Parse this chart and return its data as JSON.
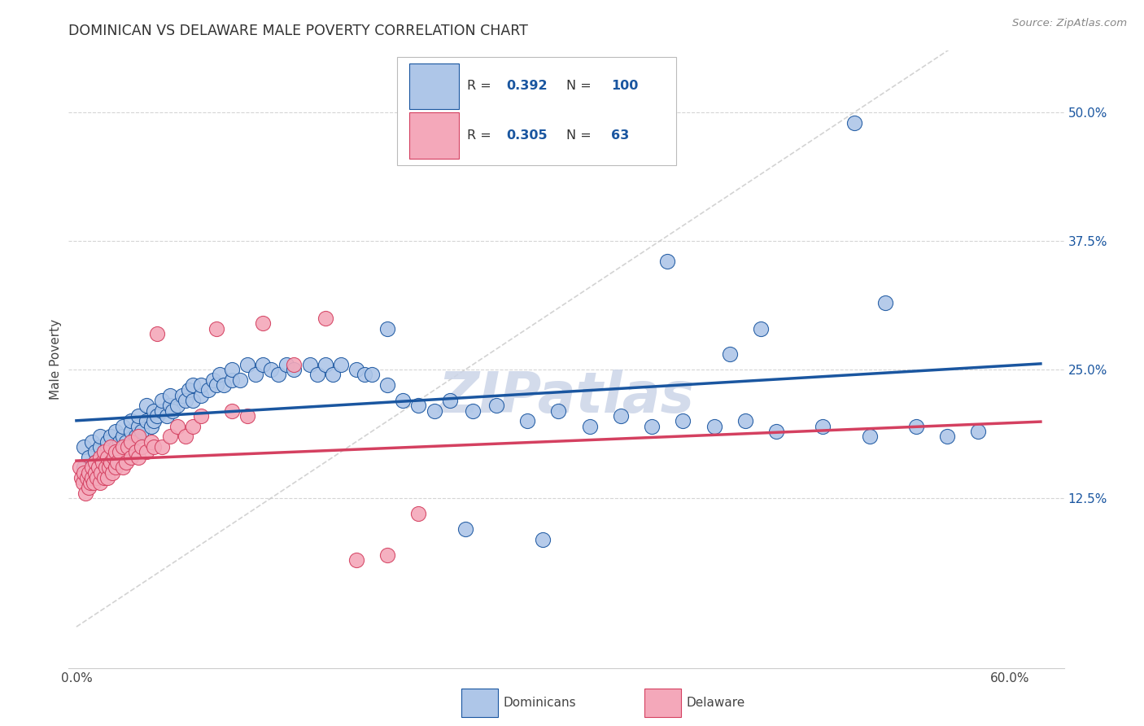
{
  "title": "DOMINICAN VS DELAWARE MALE POVERTY CORRELATION CHART",
  "source": "Source: ZipAtlas.com",
  "ylabel_text": "Male Poverty",
  "y_ticks": [
    0.125,
    0.25,
    0.375,
    0.5
  ],
  "y_tick_labels": [
    "12.5%",
    "25.0%",
    "37.5%",
    "50.0%"
  ],
  "x_ticks": [
    0.0,
    0.1,
    0.2,
    0.3,
    0.4,
    0.5,
    0.6
  ],
  "x_tick_labels": [
    "0.0%",
    "",
    "",
    "",
    "",
    "",
    "60.0%"
  ],
  "xlim": [
    -0.005,
    0.635
  ],
  "ylim": [
    -0.04,
    0.56
  ],
  "dominicans_R": "0.392",
  "dominicans_N": "100",
  "delaware_R": "0.305",
  "delaware_N": "63",
  "legend_label_1": "Dominicans",
  "legend_label_2": "Delaware",
  "scatter_color_blue": "#aec6e8",
  "scatter_color_pink": "#f4a8ba",
  "line_color_blue": "#1a56a0",
  "line_color_pink": "#d44060",
  "line_color_diagonal": "#c8c8c8",
  "watermark_text": "ZIPatlas",
  "watermark_color": "#ccd5e8",
  "dom_x": [
    0.005,
    0.005,
    0.008,
    0.01,
    0.01,
    0.012,
    0.012,
    0.015,
    0.015,
    0.018,
    0.018,
    0.02,
    0.02,
    0.02,
    0.022,
    0.022,
    0.025,
    0.025,
    0.028,
    0.03,
    0.03,
    0.032,
    0.035,
    0.035,
    0.038,
    0.04,
    0.04,
    0.042,
    0.045,
    0.045,
    0.048,
    0.05,
    0.05,
    0.052,
    0.055,
    0.055,
    0.058,
    0.06,
    0.06,
    0.062,
    0.065,
    0.068,
    0.07,
    0.072,
    0.075,
    0.075,
    0.08,
    0.08,
    0.085,
    0.088,
    0.09,
    0.092,
    0.095,
    0.1,
    0.1,
    0.105,
    0.11,
    0.115,
    0.12,
    0.125,
    0.13,
    0.135,
    0.14,
    0.15,
    0.155,
    0.16,
    0.165,
    0.17,
    0.18,
    0.185,
    0.19,
    0.2,
    0.21,
    0.22,
    0.23,
    0.24,
    0.255,
    0.27,
    0.29,
    0.31,
    0.33,
    0.35,
    0.37,
    0.39,
    0.41,
    0.43,
    0.45,
    0.48,
    0.51,
    0.54,
    0.56,
    0.58,
    0.42,
    0.38,
    0.5,
    0.52,
    0.44,
    0.3,
    0.25,
    0.2
  ],
  "dom_y": [
    0.155,
    0.175,
    0.165,
    0.18,
    0.155,
    0.17,
    0.16,
    0.175,
    0.185,
    0.17,
    0.165,
    0.175,
    0.18,
    0.16,
    0.17,
    0.185,
    0.175,
    0.19,
    0.18,
    0.185,
    0.195,
    0.18,
    0.19,
    0.2,
    0.185,
    0.195,
    0.205,
    0.19,
    0.2,
    0.215,
    0.195,
    0.2,
    0.21,
    0.205,
    0.21,
    0.22,
    0.205,
    0.215,
    0.225,
    0.21,
    0.215,
    0.225,
    0.22,
    0.23,
    0.22,
    0.235,
    0.225,
    0.235,
    0.23,
    0.24,
    0.235,
    0.245,
    0.235,
    0.24,
    0.25,
    0.24,
    0.255,
    0.245,
    0.255,
    0.25,
    0.245,
    0.255,
    0.25,
    0.255,
    0.245,
    0.255,
    0.245,
    0.255,
    0.25,
    0.245,
    0.245,
    0.235,
    0.22,
    0.215,
    0.21,
    0.22,
    0.21,
    0.215,
    0.2,
    0.21,
    0.195,
    0.205,
    0.195,
    0.2,
    0.195,
    0.2,
    0.19,
    0.195,
    0.185,
    0.195,
    0.185,
    0.19,
    0.265,
    0.355,
    0.49,
    0.315,
    0.29,
    0.085,
    0.095,
    0.29
  ],
  "del_x": [
    0.002,
    0.003,
    0.004,
    0.005,
    0.006,
    0.007,
    0.008,
    0.008,
    0.009,
    0.01,
    0.01,
    0.011,
    0.012,
    0.012,
    0.013,
    0.014,
    0.015,
    0.015,
    0.016,
    0.017,
    0.018,
    0.018,
    0.019,
    0.02,
    0.02,
    0.021,
    0.022,
    0.022,
    0.023,
    0.024,
    0.025,
    0.025,
    0.026,
    0.028,
    0.03,
    0.03,
    0.032,
    0.033,
    0.035,
    0.035,
    0.038,
    0.04,
    0.04,
    0.042,
    0.045,
    0.048,
    0.05,
    0.052,
    0.055,
    0.06,
    0.065,
    0.07,
    0.075,
    0.08,
    0.09,
    0.1,
    0.11,
    0.12,
    0.14,
    0.16,
    0.18,
    0.2,
    0.22
  ],
  "del_y": [
    0.155,
    0.145,
    0.14,
    0.15,
    0.13,
    0.145,
    0.135,
    0.15,
    0.14,
    0.145,
    0.155,
    0.14,
    0.15,
    0.16,
    0.145,
    0.155,
    0.14,
    0.165,
    0.15,
    0.16,
    0.145,
    0.17,
    0.155,
    0.145,
    0.165,
    0.155,
    0.16,
    0.175,
    0.15,
    0.165,
    0.155,
    0.17,
    0.16,
    0.17,
    0.155,
    0.175,
    0.16,
    0.175,
    0.165,
    0.18,
    0.17,
    0.165,
    0.185,
    0.175,
    0.17,
    0.18,
    0.175,
    0.285,
    0.175,
    0.185,
    0.195,
    0.185,
    0.195,
    0.205,
    0.29,
    0.21,
    0.205,
    0.295,
    0.255,
    0.3,
    0.065,
    0.07,
    0.11
  ]
}
